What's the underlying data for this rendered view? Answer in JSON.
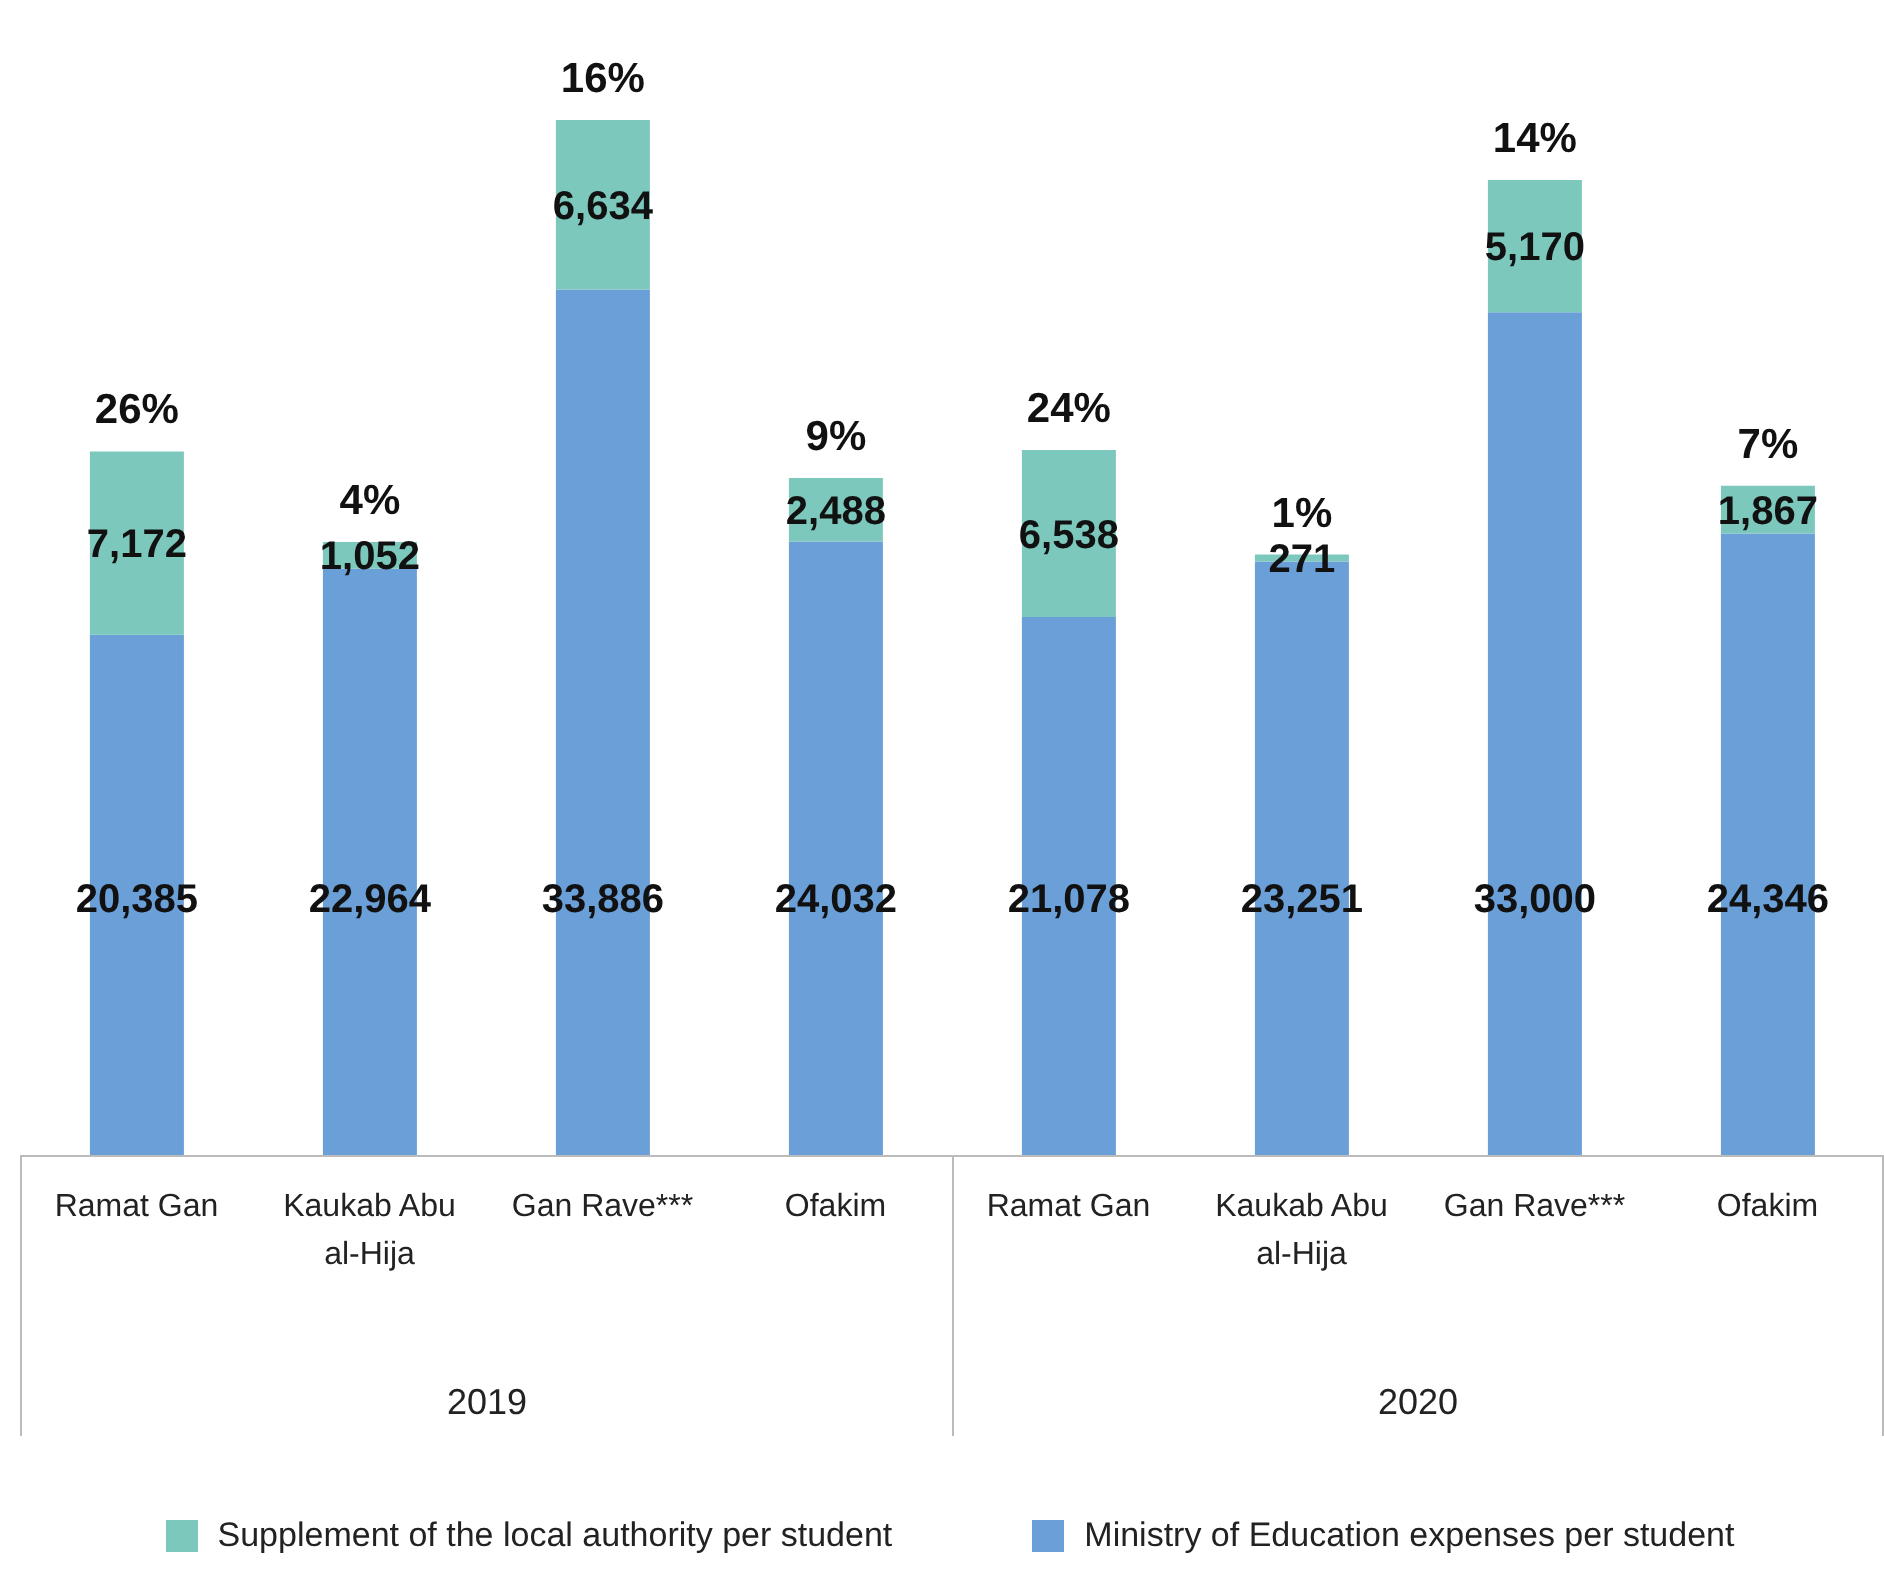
{
  "chart_data": {
    "type": "bar",
    "stacked": true,
    "legend": "bottom",
    "categories": [
      "Ramat Gan",
      "Kaukab Abu al-Hija",
      "Gan Rave***",
      "Ofakim",
      "Ramat Gan",
      "Kaukab Abu al-Hija",
      "Gan Rave***",
      "Ofakim"
    ],
    "series": [
      {
        "name": "Ministry of Education expenses per student",
        "color": "#6a9fd8",
        "values": [
          20385,
          22964,
          33886,
          24032,
          21078,
          23251,
          33000,
          24346
        ],
        "value_labels": [
          "20,385",
          "22,964",
          "33,886",
          "24,032",
          "21,078",
          "23,251",
          "33,000",
          "24,346"
        ]
      },
      {
        "name": "Supplement of the local authority per student",
        "color": "#7dc8bd",
        "values": [
          7172,
          1052,
          6634,
          2488,
          6538,
          271,
          5170,
          1867
        ],
        "value_labels": [
          "7,172",
          "1,052",
          "6,634",
          "2,488",
          "6,538",
          "271",
          "5,170",
          "1,867"
        ]
      }
    ],
    "annotations": [
      "2019",
      "2020",
      "26%",
      "4%",
      "16%",
      "9%",
      "24%",
      "1%",
      "14%",
      "7%"
    ]
  }
}
